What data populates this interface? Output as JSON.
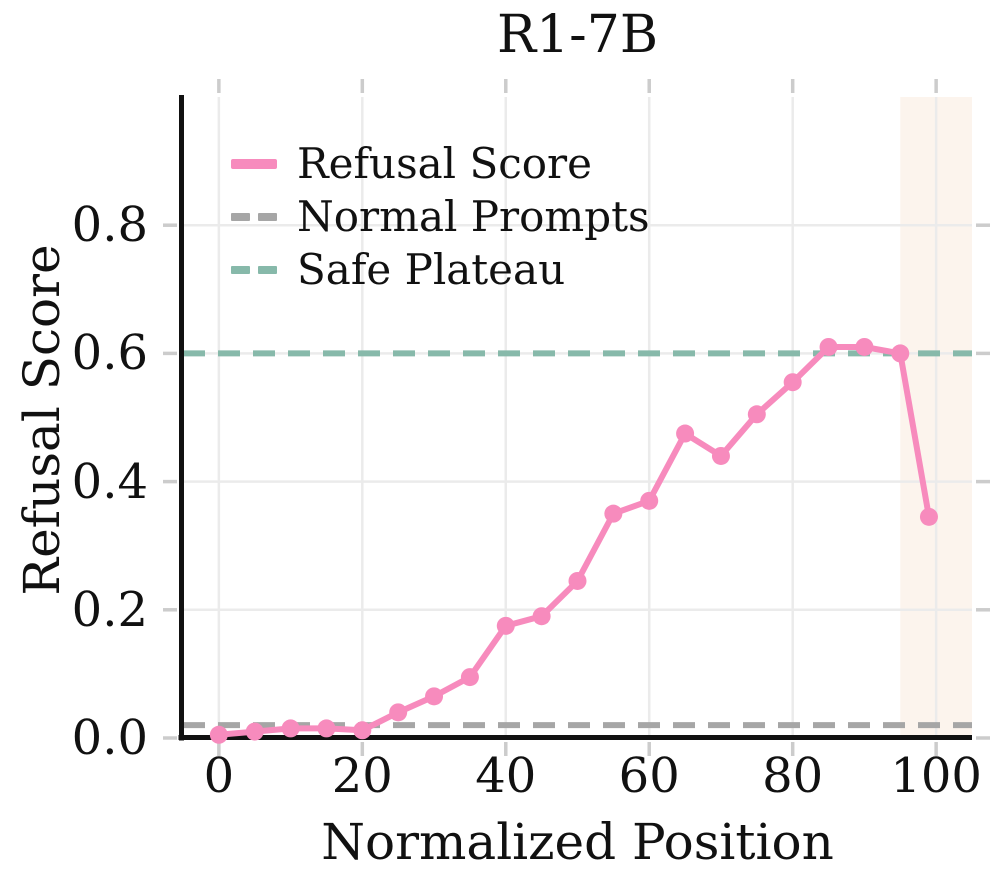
{
  "chart_data": {
    "type": "line",
    "title": "R1-7B",
    "xlabel": "Normalized Position",
    "ylabel": "Refusal Score",
    "xlim": [
      -5,
      105
    ],
    "ylim": [
      0,
      1.0
    ],
    "x_ticks": [
      0,
      20,
      40,
      60,
      80,
      100
    ],
    "x_tick_labels": [
      "0",
      "20",
      "40",
      "60",
      "80",
      "100"
    ],
    "y_ticks": [
      0,
      0.2,
      0.4,
      0.6,
      0.8
    ],
    "y_tick_labels": [
      "0.0",
      "0.2",
      "0.4",
      "0.6",
      "0.8"
    ],
    "grid": true,
    "legend_position": "upper left",
    "series": [
      {
        "name": "Refusal Score",
        "kind": "line-markers",
        "color": "#F78BBD",
        "x": [
          0,
          5,
          10,
          15,
          20,
          25,
          30,
          35,
          40,
          45,
          50,
          55,
          60,
          65,
          70,
          75,
          80,
          85,
          90,
          95,
          99
        ],
        "y": [
          0.005,
          0.01,
          0.015,
          0.015,
          0.012,
          0.04,
          0.065,
          0.095,
          0.175,
          0.19,
          0.245,
          0.35,
          0.37,
          0.475,
          0.44,
          0.505,
          0.555,
          0.61,
          0.61,
          0.6,
          0.345
        ]
      },
      {
        "name": "Normal Prompts",
        "kind": "hline-dashed",
        "color": "#A6A6A6",
        "y": 0.02
      },
      {
        "name": "Safe Plateau",
        "kind": "hline-dashed",
        "color": "#87B9AA",
        "y": 0.6
      }
    ],
    "shaded_region": {
      "x_start": 95,
      "x_end": 105,
      "color": "#FCF4ED"
    }
  },
  "legend": {
    "items": [
      {
        "label": "Refusal Score",
        "color": "#F78BBD",
        "dashed": false
      },
      {
        "label": "Normal Prompts",
        "color": "#A6A6A6",
        "dashed": true
      },
      {
        "label": "Safe Plateau",
        "color": "#87B9AA",
        "dashed": true
      }
    ]
  },
  "style": {
    "grid_color": "#EBEBEB",
    "tick_color": "#CCCCCC",
    "spine_color": "#111111",
    "text_color": "#111111",
    "background": "#FFFFFF"
  }
}
